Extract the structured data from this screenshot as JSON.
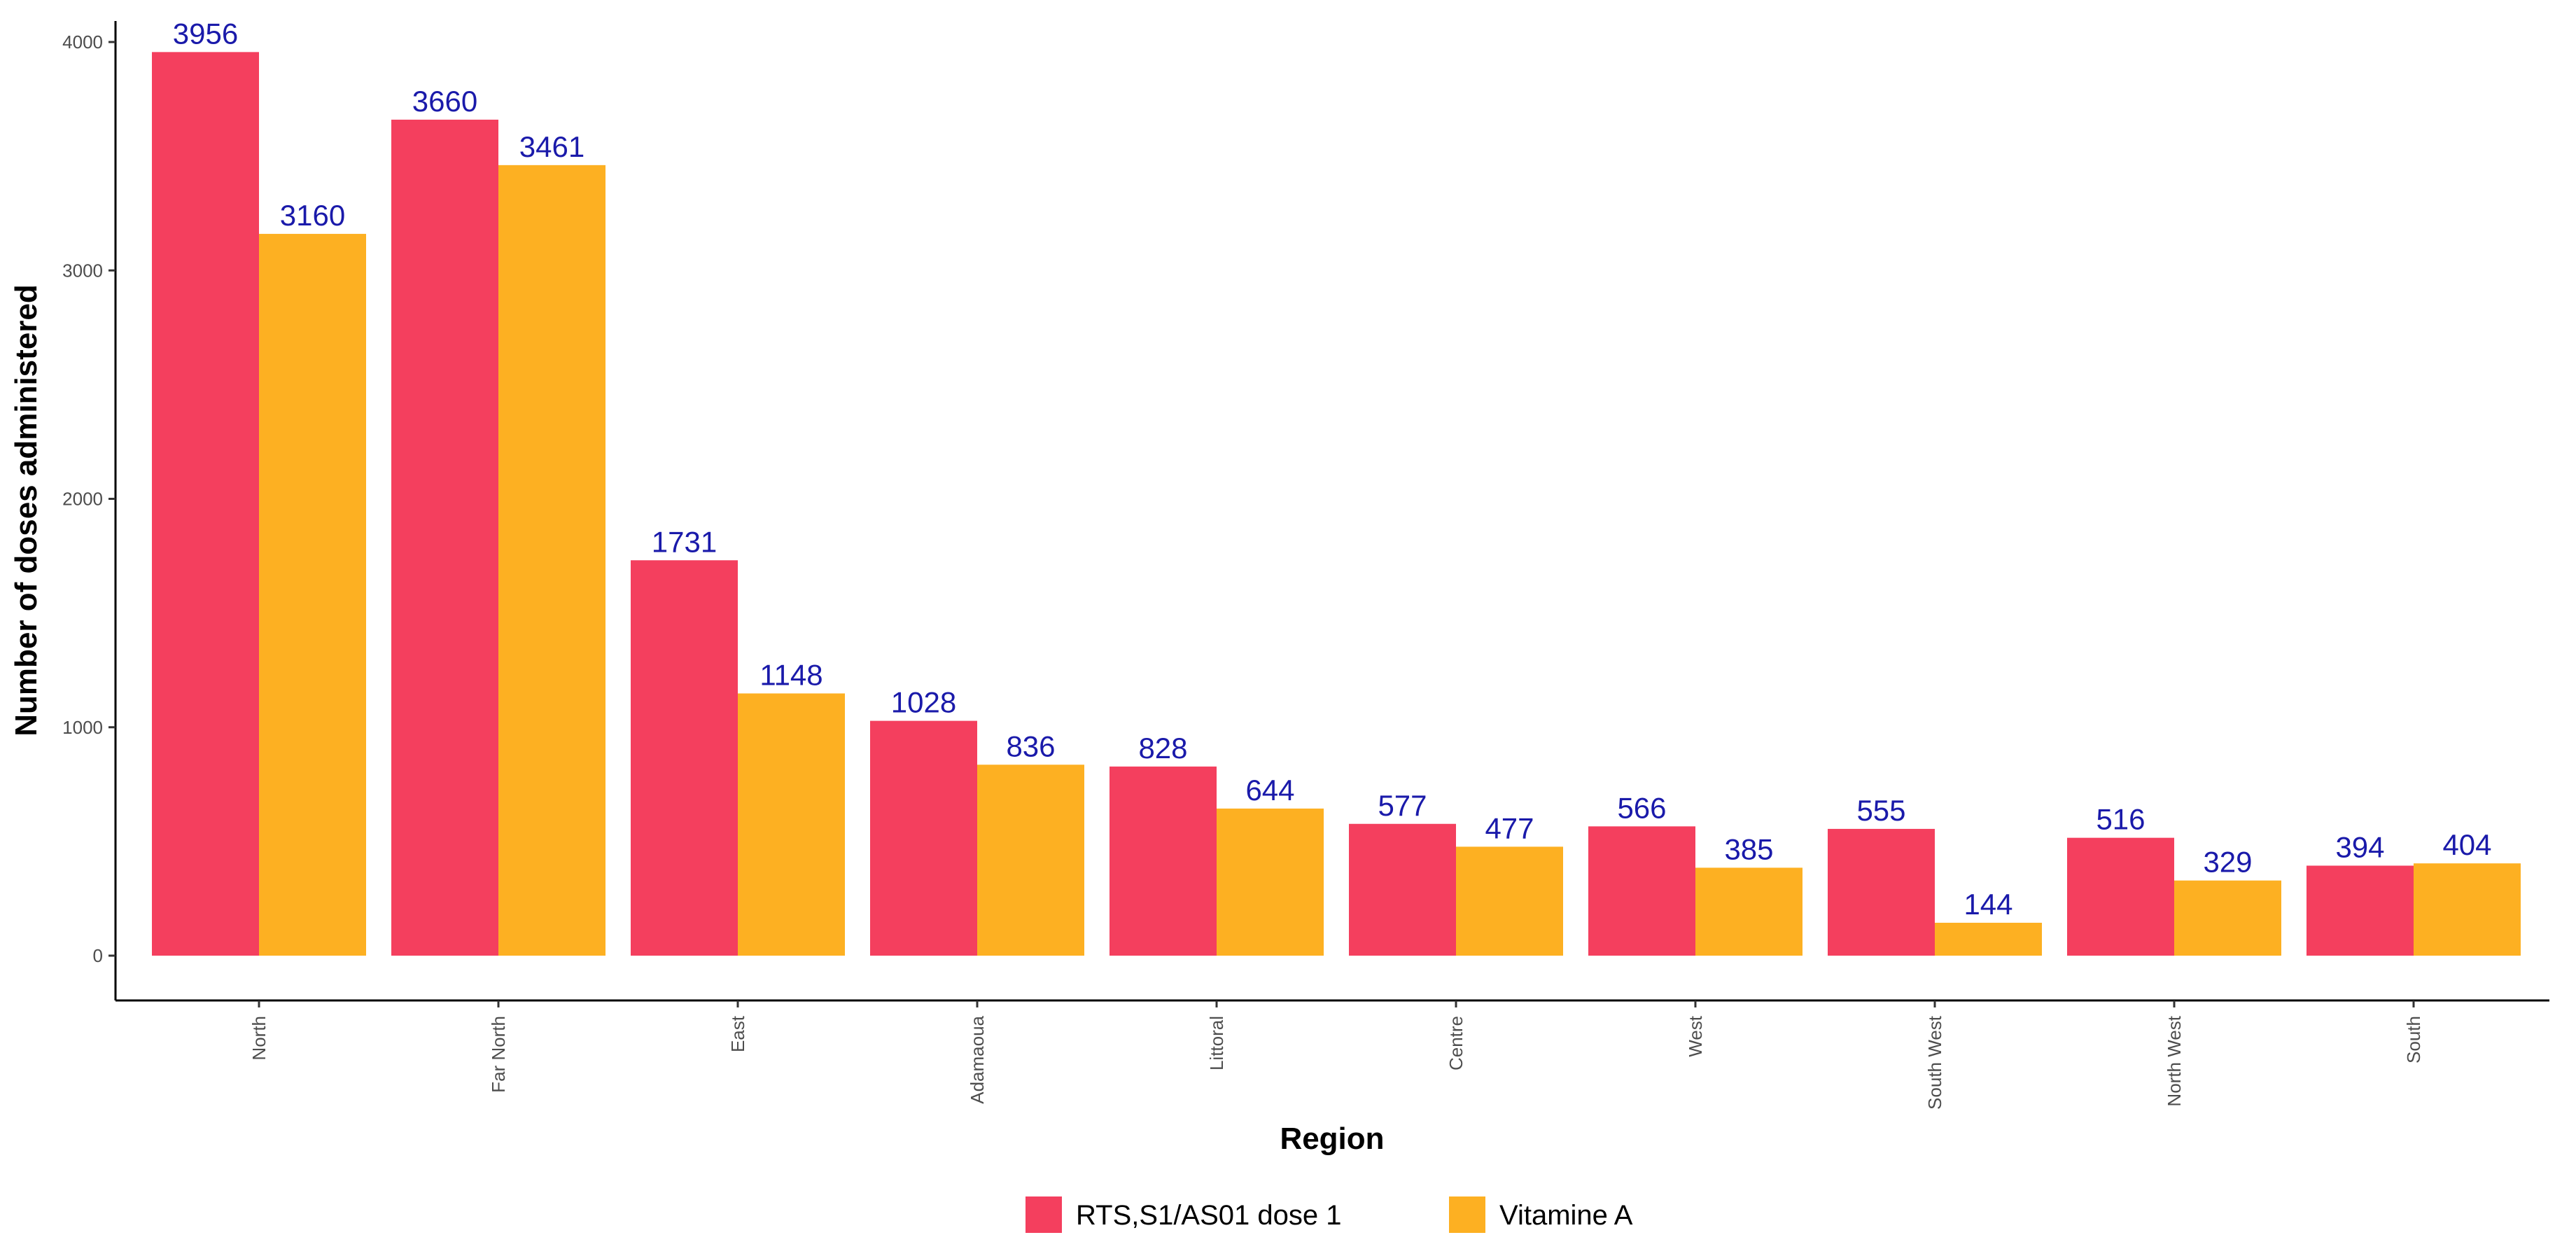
{
  "chart_data": {
    "type": "bar",
    "title": "",
    "xlabel": "Region",
    "ylabel": "Number of doses administered",
    "categories": [
      "North",
      "Far North",
      "East",
      "Adamaoua",
      "Littoral",
      "Centre",
      "West",
      "South West",
      "North West",
      "South"
    ],
    "series": [
      {
        "name": "RTS,S1/AS01 dose 1",
        "color": "#F43F5E",
        "values": [
          3956,
          3660,
          1731,
          1028,
          828,
          577,
          566,
          555,
          516,
          394
        ]
      },
      {
        "name": "Vitamine A",
        "color": "#FDB022",
        "values": [
          3160,
          3461,
          1148,
          836,
          644,
          477,
          385,
          144,
          329,
          404
        ]
      }
    ],
    "ylim": [
      0,
      4000
    ],
    "yticks": [
      0,
      1000,
      2000,
      3000,
      4000
    ],
    "grid": false,
    "legend_position": "bottom",
    "data_label_color": "#1A1AAA"
  }
}
